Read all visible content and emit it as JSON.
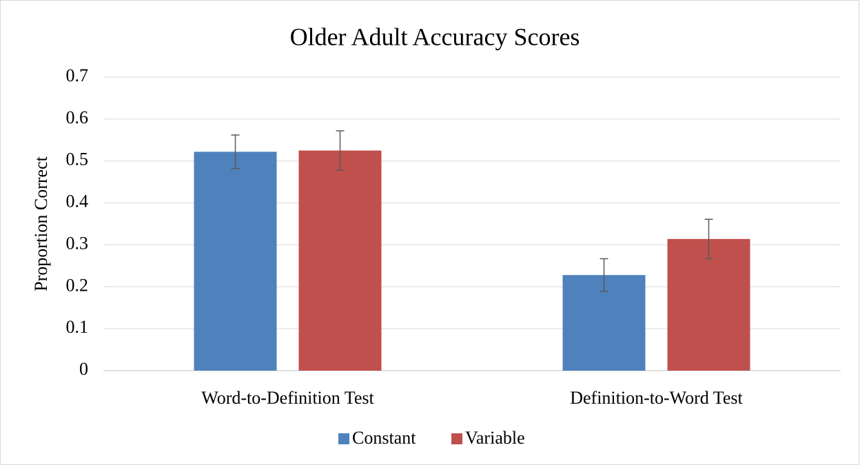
{
  "chart_data": {
    "type": "bar",
    "title": "Older Adult Accuracy Scores",
    "y_label": "Proportion Correct",
    "categories": [
      "Word-to-Definition Test",
      "Definition-to-Word Test"
    ],
    "series": [
      {
        "name": "Constant",
        "color": "#4f81bd",
        "values": [
          0.522,
          0.228
        ],
        "errors": [
          0.04,
          0.039
        ]
      },
      {
        "name": "Variable",
        "color": "#c0504d",
        "values": [
          0.525,
          0.314
        ],
        "errors": [
          0.047,
          0.047
        ]
      }
    ],
    "ylim": [
      0,
      0.7
    ],
    "yticks": [
      0,
      0.1,
      0.2,
      0.3,
      0.4,
      0.5,
      0.6,
      0.7
    ],
    "grid": true,
    "legend": "bottom"
  }
}
